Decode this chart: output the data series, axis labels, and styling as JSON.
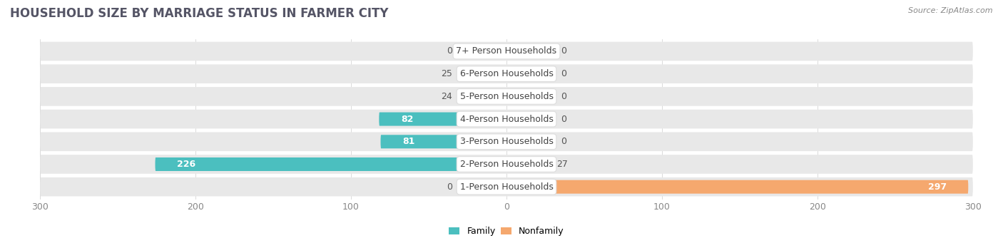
{
  "title": "HOUSEHOLD SIZE BY MARRIAGE STATUS IN FARMER CITY",
  "source": "Source: ZipAtlas.com",
  "categories": [
    "7+ Person Households",
    "6-Person Households",
    "5-Person Households",
    "4-Person Households",
    "3-Person Households",
    "2-Person Households",
    "1-Person Households"
  ],
  "family": [
    0,
    25,
    24,
    82,
    81,
    226,
    0
  ],
  "nonfamily": [
    0,
    0,
    0,
    0,
    0,
    27,
    297
  ],
  "family_color": "#4bbfbf",
  "nonfamily_color": "#f5a86e",
  "xlim": 300,
  "bg_color": "#ffffff",
  "row_bg_color": "#e8e8e8",
  "title_fontsize": 12,
  "label_fontsize": 9,
  "tick_fontsize": 9,
  "bar_height": 0.6,
  "stub_size": 30
}
